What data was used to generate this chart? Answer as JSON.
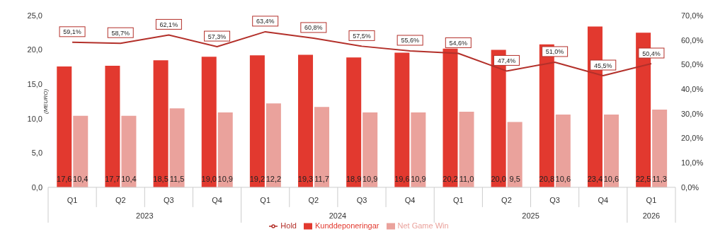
{
  "chart_data": {
    "type": "bar",
    "ylabel": "(MEURO)",
    "categories": [
      "Q1",
      "Q2",
      "Q3",
      "Q4",
      "Q1",
      "Q2",
      "Q3",
      "Q4",
      "Q1",
      "Q2",
      "Q3",
      "Q4",
      "Q1"
    ],
    "annotations": [
      "2023",
      "2024",
      "2025",
      "2026"
    ],
    "series": [
      {
        "name": "Kunddeponeringar",
        "color": "#e2392f",
        "values": [
          17.6,
          17.7,
          18.5,
          19.0,
          19.2,
          19.3,
          18.9,
          19.6,
          20.2,
          20.0,
          20.8,
          23.4,
          22.5
        ],
        "value_labels": [
          "17,6",
          "17,7",
          "18,5",
          "19,0",
          "19,2",
          "19,3",
          "18,9",
          "19,6",
          "20,2",
          "20,0",
          "20,8",
          "23,4",
          "22,5"
        ]
      },
      {
        "name": "Net Game Win",
        "color": "#eaa29c",
        "values": [
          10.4,
          10.4,
          11.5,
          10.9,
          12.2,
          11.7,
          10.9,
          10.9,
          11.0,
          9.5,
          10.6,
          10.6,
          11.3
        ],
        "value_labels": [
          "10,4",
          "10,4",
          "11,5",
          "10,9",
          "12,2",
          "11,7",
          "10,9",
          "10,9",
          "11,0",
          "9,5",
          "10,6",
          "10,6",
          "11,3"
        ]
      },
      {
        "name": "Hold",
        "type": "line",
        "axis": "y2",
        "color": "#b3302a",
        "values": [
          59.1,
          58.7,
          62.1,
          57.3,
          63.4,
          60.8,
          57.5,
          55.6,
          54.6,
          47.4,
          51.0,
          45.5,
          50.4
        ],
        "value_labels": [
          "59,1%",
          "58,7%",
          "62,1%",
          "57,3%",
          "63,4%",
          "60,8%",
          "57,5%",
          "55,6%",
          "54,6%",
          "47,4%",
          "51,0%",
          "45,5%",
          "50,4%"
        ]
      }
    ],
    "ylim": [
      0,
      25
    ],
    "yticks": [
      {
        "value": 0,
        "label": "0,0"
      },
      {
        "value": 5,
        "label": "5,0"
      },
      {
        "value": 10,
        "label": "10,0"
      },
      {
        "value": 15,
        "label": "15,0"
      },
      {
        "value": 20,
        "label": "20,0"
      },
      {
        "value": 25,
        "label": "25,0"
      }
    ],
    "y2lim": [
      0,
      70
    ],
    "y2ticks": [
      {
        "value": 0,
        "label": "0,0%"
      },
      {
        "value": 10,
        "label": "10,0%"
      },
      {
        "value": 20,
        "label": "20,0%"
      },
      {
        "value": 30,
        "label": "30,0%"
      },
      {
        "value": 40,
        "label": "40,0%"
      },
      {
        "value": 50,
        "label": "50,0%"
      },
      {
        "value": 60,
        "label": "60,0%"
      },
      {
        "value": 70,
        "label": "70,0%"
      }
    ],
    "legend": "bottom",
    "grid": false,
    "marker": "none"
  }
}
